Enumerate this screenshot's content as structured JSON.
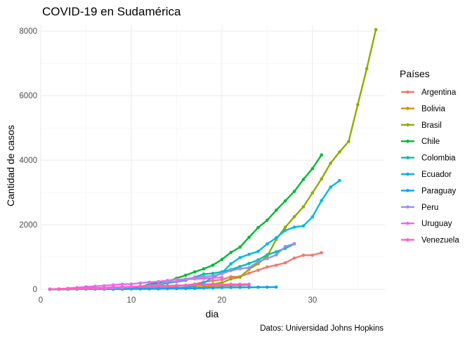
{
  "chart_data": {
    "type": "line",
    "title": "COVID-19 en Sudamérica",
    "xlabel": "dia",
    "ylabel": "Cantidad de casos",
    "caption": "Datos: Universidad Johns Hopkins",
    "legend_title": "Países",
    "legend_position": "right",
    "grid": true,
    "xlim": [
      0,
      38
    ],
    "ylim": [
      0,
      8200
    ],
    "x_ticks": [
      0,
      10,
      20,
      30
    ],
    "y_ticks": [
      0,
      2000,
      4000,
      6000,
      8000
    ],
    "series": [
      {
        "name": "Argentina",
        "color": "#F8766D",
        "x": [
          1,
          2,
          3,
          4,
          5,
          6,
          7,
          8,
          9,
          10,
          11,
          12,
          13,
          14,
          15,
          16,
          17,
          18,
          19,
          20,
          21,
          22,
          23,
          24,
          25,
          26,
          27,
          28,
          29,
          30,
          31
        ],
        "y": [
          1,
          1,
          2,
          8,
          12,
          17,
          19,
          21,
          31,
          34,
          45,
          56,
          65,
          79,
          97,
          128,
          158,
          225,
          266,
          301,
          387,
          387,
          502,
          589,
          690,
          745,
          820,
          966,
          1054,
          1054,
          1133
        ]
      },
      {
        "name": "Bolivia",
        "color": "#D39200",
        "x": [
          1,
          2,
          3,
          4,
          5,
          6,
          7,
          8,
          9,
          10,
          11,
          12,
          13,
          14,
          15,
          16,
          17,
          18,
          19,
          20,
          21,
          22,
          23
        ],
        "y": [
          2,
          2,
          3,
          10,
          10,
          11,
          11,
          12,
          15,
          19,
          24,
          27,
          29,
          32,
          43,
          61,
          74,
          81,
          97,
          107,
          115,
          123,
          132
        ]
      },
      {
        "name": "Brasil",
        "color": "#93AA00",
        "x": [
          1,
          2,
          3,
          4,
          5,
          6,
          7,
          8,
          9,
          10,
          11,
          12,
          13,
          14,
          15,
          16,
          17,
          18,
          19,
          20,
          21,
          22,
          23,
          24,
          25,
          26,
          27,
          28,
          29,
          30,
          31,
          32,
          33,
          34,
          35,
          36,
          37
        ],
        "y": [
          1,
          1,
          1,
          2,
          2,
          2,
          2,
          4,
          4,
          13,
          13,
          20,
          25,
          31,
          38,
          52,
          151,
          151,
          162,
          200,
          321,
          372,
          621,
          793,
          1021,
          1546,
          1924,
          2247,
          2554,
          2985,
          3417,
          3904,
          4256,
          4579,
          5717,
          6836,
          8044
        ]
      },
      {
        "name": "Chile",
        "color": "#00BA38",
        "x": [
          1,
          2,
          3,
          4,
          5,
          6,
          7,
          8,
          9,
          10,
          11,
          12,
          13,
          14,
          15,
          16,
          17,
          18,
          19,
          20,
          21,
          22,
          23,
          24,
          25,
          26,
          27,
          28,
          29,
          30,
          31
        ],
        "y": [
          1,
          4,
          7,
          10,
          13,
          17,
          23,
          33,
          43,
          61,
          75,
          156,
          201,
          238,
          342,
          434,
          537,
          632,
          746,
          922,
          1142,
          1306,
          1610,
          1909,
          2139,
          2449,
          2738,
          3031,
          3404,
          3737,
          4161
        ]
      },
      {
        "name": "Colombia",
        "color": "#00C19F",
        "x": [
          1,
          2,
          3,
          4,
          5,
          6,
          7,
          8,
          9,
          10,
          11,
          12,
          13,
          14,
          15,
          16,
          17,
          18,
          19,
          20,
          21,
          22,
          23,
          24,
          25,
          26,
          27,
          28
        ],
        "y": [
          1,
          3,
          3,
          9,
          9,
          13,
          22,
          34,
          54,
          65,
          93,
          102,
          128,
          196,
          231,
          277,
          378,
          470,
          491,
          539,
          608,
          702,
          798,
          906,
          1065,
          1161,
          1267,
          1406
        ]
      },
      {
        "name": "Ecuador",
        "color": "#00B9E3",
        "x": [
          1,
          2,
          3,
          4,
          5,
          6,
          7,
          8,
          9,
          10,
          11,
          12,
          13,
          14,
          15,
          16,
          17,
          18,
          19,
          20,
          21,
          22,
          23,
          24,
          25,
          26,
          27,
          28,
          29,
          30,
          31,
          32,
          33
        ],
        "y": [
          1,
          6,
          7,
          10,
          13,
          13,
          13,
          14,
          15,
          15,
          17,
          17,
          17,
          28,
          37,
          58,
          111,
          199,
          367,
          506,
          789,
          981,
          1082,
          1173,
          1403,
          1595,
          1823,
          1924,
          1962,
          2240,
          2748,
          3163,
          3368
        ]
      },
      {
        "name": "Paraguay",
        "color": "#00A5FF",
        "x": [
          1,
          2,
          3,
          4,
          5,
          6,
          7,
          8,
          9,
          10,
          11,
          12,
          13,
          14,
          15,
          16,
          17,
          18,
          19,
          20,
          21,
          22,
          23,
          24,
          25,
          26
        ],
        "y": [
          1,
          1,
          1,
          2,
          5,
          6,
          6,
          6,
          8,
          9,
          11,
          11,
          13,
          18,
          22,
          22,
          27,
          37,
          41,
          52,
          56,
          59,
          61,
          64,
          65,
          69
        ]
      },
      {
        "name": "Peru",
        "color": "#9590FF",
        "x": [
          1,
          2,
          3,
          4,
          5,
          6,
          7,
          8,
          9,
          10,
          11,
          12,
          13,
          14,
          15,
          16,
          17,
          18,
          19,
          20,
          21,
          22,
          23,
          24,
          25,
          26,
          27,
          28
        ],
        "y": [
          1,
          6,
          7,
          9,
          11,
          17,
          22,
          38,
          43,
          71,
          86,
          117,
          145,
          234,
          234,
          318,
          363,
          395,
          416,
          480,
          580,
          635,
          671,
          852,
          950,
          1065,
          1323,
          1414
        ]
      },
      {
        "name": "Uruguay",
        "color": "#E76BF3",
        "x": [
          1,
          2,
          3,
          4,
          5,
          6,
          7,
          8,
          9,
          10,
          11,
          12,
          13,
          14,
          15,
          16,
          17,
          18,
          19,
          20
        ],
        "y": [
          4,
          8,
          29,
          50,
          79,
          94,
          110,
          135,
          158,
          162,
          189,
          217,
          238,
          274,
          304,
          310,
          320,
          338,
          350,
          369
        ]
      },
      {
        "name": "Venezuela",
        "color": "#FF62BC",
        "x": [
          1,
          2,
          3,
          4,
          5,
          6,
          7,
          8,
          9,
          10,
          11,
          12,
          13,
          14,
          15,
          16,
          17,
          18,
          19,
          20,
          21,
          22,
          23
        ],
        "y": [
          2,
          10,
          17,
          33,
          36,
          42,
          42,
          70,
          70,
          77,
          84,
          91,
          107,
          107,
          119,
          119,
          135,
          135,
          143,
          146,
          153,
          155,
          159
        ]
      }
    ]
  }
}
